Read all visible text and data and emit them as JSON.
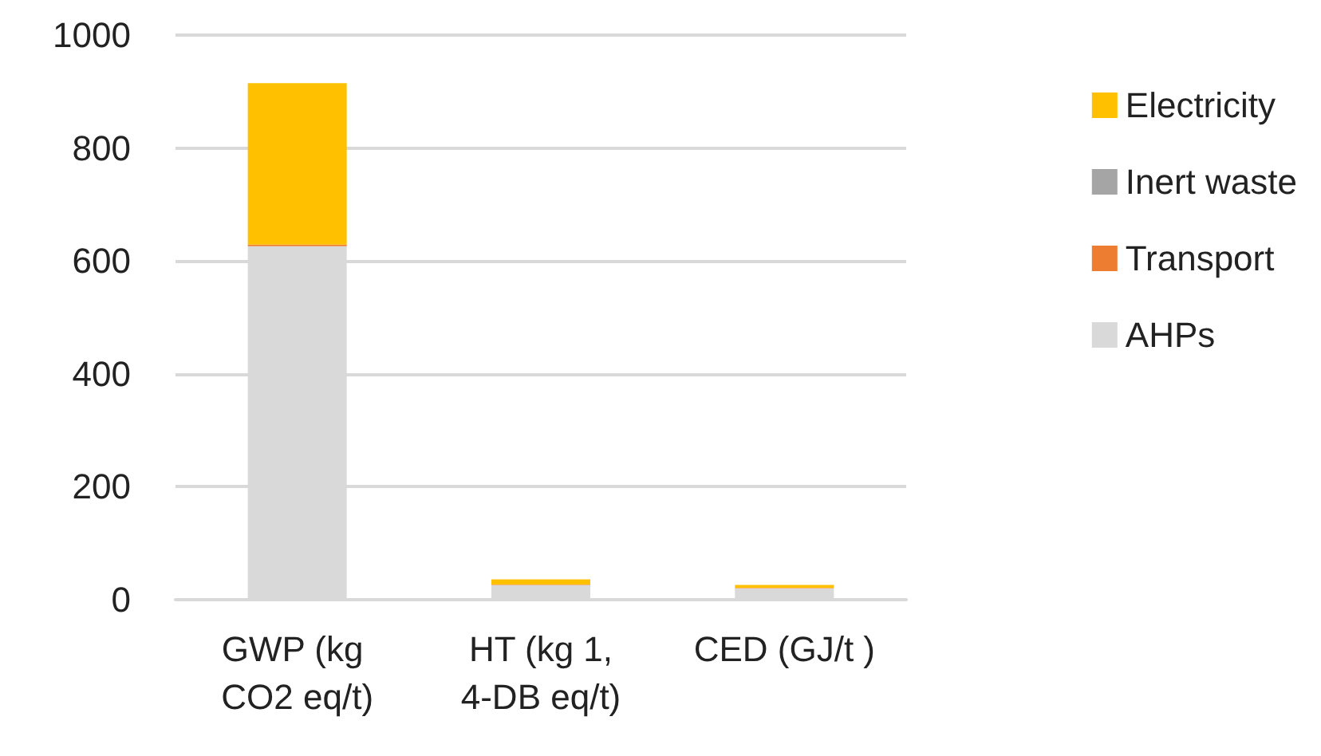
{
  "chart_data": {
    "type": "bar",
    "stacked": true,
    "categories": [
      "GWP (kg CO2 eq/t)",
      "HT (kg 1,4-DB eq/t)",
      "CED (GJ/t )"
    ],
    "series": [
      {
        "name": "AHPs",
        "color": "#d9d9d9",
        "values": [
          626,
          26,
          20
        ]
      },
      {
        "name": "Transport",
        "color": "#ed7d31",
        "values": [
          3,
          1,
          1
        ]
      },
      {
        "name": "Inert waste",
        "color": "#a5a5a5",
        "values": [
          0,
          0,
          0
        ]
      },
      {
        "name": "Electricity",
        "color": "#ffc000",
        "values": [
          286,
          9,
          5
        ]
      }
    ],
    "ylim": [
      0,
      1000
    ],
    "yticks": [
      0,
      200,
      400,
      600,
      800,
      1000
    ],
    "grid": "y",
    "legend": "right"
  }
}
